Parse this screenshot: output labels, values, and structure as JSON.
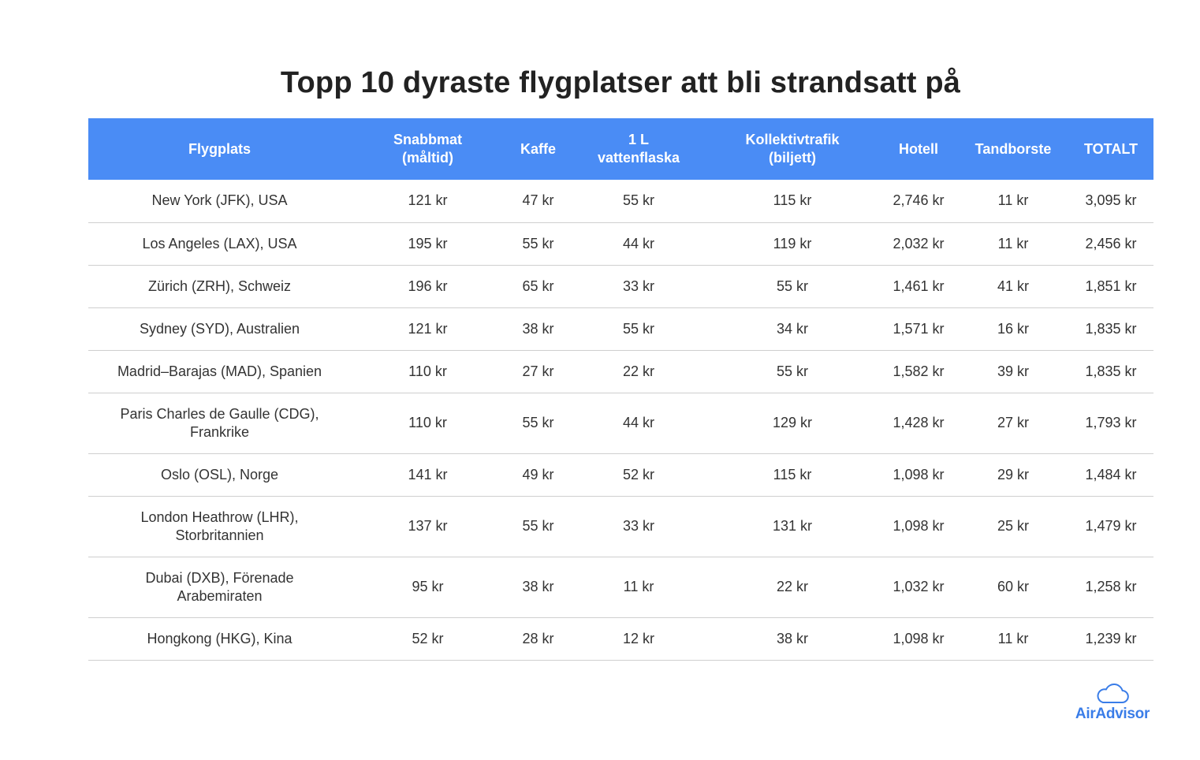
{
  "title": "Topp 10 dyraste flygplatser att bli strandsatt på",
  "colors": {
    "header_bg": "#4a8cf5",
    "header_text": "#ffffff",
    "logo": "#3a7de8",
    "row_divider": "#cfcfcf"
  },
  "table": {
    "headers": [
      "Flygplats",
      "Snabbmat\n(måltid)",
      "Kaffe",
      "1 L\nvattenflaska",
      "Kollektivtrafik\n(biljett)",
      "Hotell",
      "Tandborste",
      "TOTALT"
    ],
    "rows": [
      [
        "New York (JFK), USA",
        "121 kr",
        "47 kr",
        "55 kr",
        "115 kr",
        "2,746 kr",
        "11 kr",
        "3,095 kr"
      ],
      [
        "Los Angeles (LAX), USA",
        "195 kr",
        "55 kr",
        "44 kr",
        "119 kr",
        "2,032 kr",
        "11 kr",
        "2,456 kr"
      ],
      [
        "Zürich (ZRH), Schweiz",
        "196 kr",
        "65 kr",
        "33 kr",
        "55 kr",
        "1,461 kr",
        "41 kr",
        "1,851 kr"
      ],
      [
        "Sydney (SYD), Australien",
        "121 kr",
        "38 kr",
        "55 kr",
        "34 kr",
        "1,571 kr",
        "16 kr",
        "1,835 kr"
      ],
      [
        "Madrid–Barajas (MAD), Spanien",
        "110 kr",
        "27 kr",
        "22 kr",
        "55 kr",
        "1,582 kr",
        "39 kr",
        "1,835 kr"
      ],
      [
        "Paris Charles de Gaulle (CDG), Frankrike",
        "110 kr",
        "55 kr",
        "44 kr",
        "129 kr",
        "1,428 kr",
        "27 kr",
        "1,793 kr"
      ],
      [
        "Oslo (OSL), Norge",
        "141 kr",
        "49 kr",
        "52 kr",
        "115 kr",
        "1,098 kr",
        "29 kr",
        "1,484 kr"
      ],
      [
        "London Heathrow (LHR), Storbritannien",
        "137 kr",
        "55 kr",
        "33 kr",
        "131 kr",
        "1,098 kr",
        "25 kr",
        "1,479 kr"
      ],
      [
        "Dubai (DXB), Förenade Arabemiraten",
        "95 kr",
        "38 kr",
        "11 kr",
        "22 kr",
        "1,032 kr",
        "60 kr",
        "1,258 kr"
      ],
      [
        "Hongkong (HKG), Kina",
        "52 kr",
        "28 kr",
        "12 kr",
        "38 kr",
        "1,098 kr",
        "11 kr",
        "1,239 kr"
      ]
    ]
  },
  "logo": {
    "icon": "cloud-icon",
    "text": "AirAdvisor"
  }
}
